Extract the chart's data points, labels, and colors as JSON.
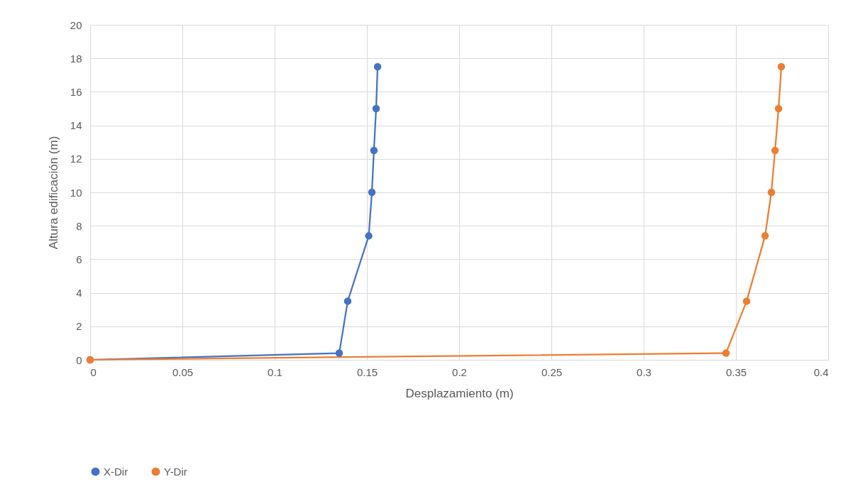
{
  "chart_data": {
    "type": "line",
    "xlabel": "Desplazamiento (m)",
    "ylabel": "Altura edificación (m)",
    "xlim": [
      0,
      0.4
    ],
    "xticks": [
      0,
      0.05,
      0.1,
      0.15,
      0.2,
      0.25,
      0.3,
      0.35,
      0.4
    ],
    "ylim": [
      0,
      20
    ],
    "yticks": [
      0,
      2,
      4,
      6,
      8,
      10,
      12,
      14,
      16,
      18,
      20
    ],
    "grid": true,
    "legend": "bottom",
    "marker": "circle",
    "line_style": "solid",
    "series": [
      {
        "name": "X-Dir",
        "color": "#4472c4",
        "x": [
          0,
          0.135,
          0.1396,
          0.151,
          0.1527,
          0.1538,
          0.155,
          0.1558
        ],
        "values": [
          0,
          0.4,
          3.5,
          7.4,
          10,
          12.5,
          15,
          17.5
        ]
      },
      {
        "name": "Y-Dir",
        "color": "#ed7d31",
        "x": [
          0,
          0.3446,
          0.3558,
          0.3658,
          0.3692,
          0.3712,
          0.3731,
          0.3746
        ],
        "values": [
          0,
          0.4,
          3.5,
          7.4,
          10,
          12.5,
          15,
          17.5
        ]
      }
    ]
  }
}
